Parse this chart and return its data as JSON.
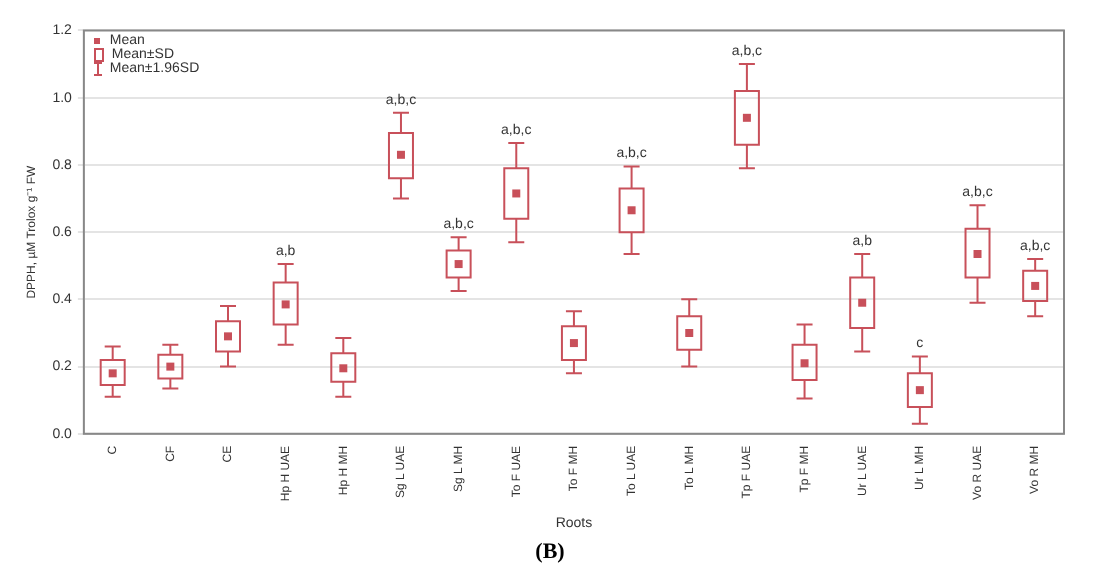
{
  "chart_data": {
    "type": "box",
    "xlabel": "Roots",
    "ylabel": "DPPH, µM Trolox g⁻¹ FW",
    "categories": [
      "C",
      "CF",
      "CE",
      "Hp H UAE",
      "Hp H MH",
      "Sg L UAE",
      "Sg L MH",
      "To F UAE",
      "To F MH",
      "To L UAE",
      "To L MH",
      "Tp F UAE",
      "Tp F MH",
      "Ur L UAE",
      "Ur L MH",
      "Vo R UAE",
      "Vo R MH"
    ],
    "color": "#c8505a",
    "marker": "square",
    "boxes": [
      {
        "low": 0.11,
        "q1": 0.145,
        "q3": 0.22,
        "high": 0.26,
        "mean": 0.18
      },
      {
        "low": 0.135,
        "q1": 0.165,
        "q3": 0.235,
        "high": 0.265,
        "mean": 0.2
      },
      {
        "low": 0.2,
        "q1": 0.245,
        "q3": 0.335,
        "high": 0.38,
        "mean": 0.29
      },
      {
        "low": 0.265,
        "q1": 0.325,
        "q3": 0.45,
        "high": 0.505,
        "mean": 0.385
      },
      {
        "low": 0.11,
        "q1": 0.155,
        "q3": 0.24,
        "high": 0.285,
        "mean": 0.195
      },
      {
        "low": 0.7,
        "q1": 0.76,
        "q3": 0.895,
        "high": 0.955,
        "mean": 0.83
      },
      {
        "low": 0.425,
        "q1": 0.465,
        "q3": 0.545,
        "high": 0.585,
        "mean": 0.505
      },
      {
        "low": 0.57,
        "q1": 0.64,
        "q3": 0.79,
        "high": 0.865,
        "mean": 0.715
      },
      {
        "low": 0.18,
        "q1": 0.22,
        "q3": 0.32,
        "high": 0.365,
        "mean": 0.27
      },
      {
        "low": 0.535,
        "q1": 0.6,
        "q3": 0.73,
        "high": 0.795,
        "mean": 0.665
      },
      {
        "low": 0.2,
        "q1": 0.25,
        "q3": 0.35,
        "high": 0.4,
        "mean": 0.3
      },
      {
        "low": 0.79,
        "q1": 0.86,
        "q3": 1.02,
        "high": 1.1,
        "mean": 0.94
      },
      {
        "low": 0.105,
        "q1": 0.16,
        "q3": 0.265,
        "high": 0.325,
        "mean": 0.21
      },
      {
        "low": 0.245,
        "q1": 0.315,
        "q3": 0.465,
        "high": 0.535,
        "mean": 0.39
      },
      {
        "low": 0.03,
        "q1": 0.08,
        "q3": 0.18,
        "high": 0.23,
        "mean": 0.13
      },
      {
        "low": 0.39,
        "q1": 0.465,
        "q3": 0.61,
        "high": 0.68,
        "mean": 0.535
      },
      {
        "low": 0.35,
        "q1": 0.395,
        "q3": 0.485,
        "high": 0.52,
        "mean": 0.44
      }
    ],
    "ylim": [
      0,
      1.2
    ],
    "yticks": [
      {
        "value": 0,
        "label": "0.0"
      },
      0.2,
      0.4,
      0.6,
      0.8,
      {
        "value": 1,
        "label": "1.0"
      },
      1.2
    ],
    "grid": "y",
    "annotations": [
      "Mean",
      "Mean±SD",
      "Mean±1.96SD",
      {
        "text": "a,b",
        "x": "Hp H UAE",
        "y": 0.505
      },
      {
        "text": "a,b,c",
        "x": "Sg L UAE",
        "y": 0.955
      },
      {
        "text": "a,b,c",
        "x": "Sg L MH",
        "y": 0.585
      },
      {
        "text": "a,b,c",
        "x": "To F UAE",
        "y": 0.865
      },
      {
        "text": "a,b,c",
        "x": "To L UAE",
        "y": 0.795
      },
      {
        "text": "a,b,c",
        "x": "Tp F UAE",
        "y": 1.1
      },
      {
        "text": "a,b",
        "x": "Ur L UAE",
        "y": 0.535
      },
      {
        "text": "c",
        "x": "Ur L MH",
        "y": 0.23
      },
      {
        "text": "a,b,c",
        "x": "Vo R UAE",
        "y": 0.68
      },
      {
        "text": "a,b,c",
        "x": "Vo R MH",
        "y": 0.52
      },
      "(B)"
    ]
  }
}
